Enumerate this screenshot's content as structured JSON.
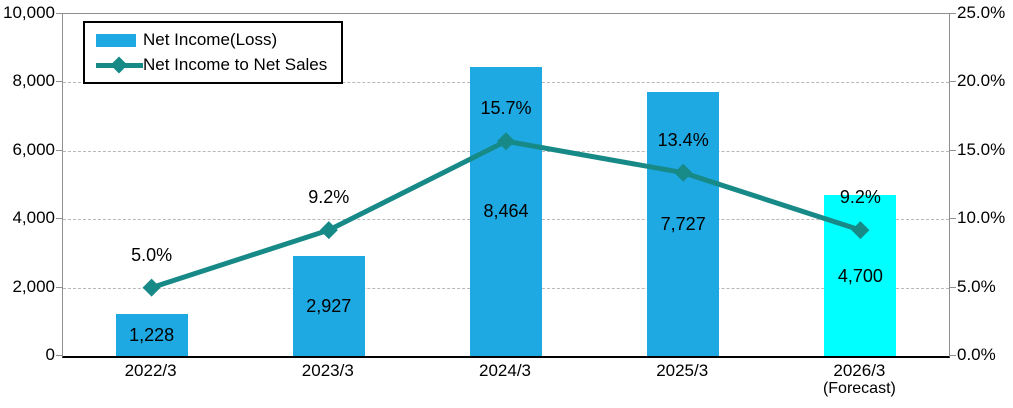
{
  "legend": {
    "items": [
      {
        "label": "Net Income(Loss)",
        "swatch": "bar-swatch",
        "color": "#1EA9E2"
      },
      {
        "label": "Net Income to Net Sales",
        "swatch": "line-diamond-swatch",
        "color": "#178A87"
      }
    ]
  },
  "chart_data": {
    "type": "combo-bar-line",
    "categories": [
      "2022/3",
      "2023/3",
      "2024/3",
      "2025/3",
      "2026/3"
    ],
    "category_sublabels": [
      "",
      "",
      "",
      "",
      "(Forecast)"
    ],
    "series": [
      {
        "name": "Net Income(Loss)",
        "type": "bar",
        "axis": "left",
        "values": [
          1228,
          2927,
          8464,
          7727,
          4700
        ],
        "labels": [
          "1,228",
          "2,927",
          "8,464",
          "7,727",
          "4,700"
        ],
        "bar_colors": [
          "#1EA9E2",
          "#1EA9E2",
          "#1EA9E2",
          "#1EA9E2",
          "#00FFFF"
        ]
      },
      {
        "name": "Net Income to Net Sales",
        "type": "line",
        "axis": "right",
        "values": [
          5.0,
          9.2,
          15.7,
          13.4,
          9.2
        ],
        "labels": [
          "5.0%",
          "9.2%",
          "15.7%",
          "13.4%",
          "9.2%"
        ],
        "color": "#178A87",
        "marker": "diamond"
      }
    ],
    "left_axis": {
      "min": 0,
      "max": 10000,
      "tick_values": [
        0,
        2000,
        4000,
        6000,
        8000,
        10000
      ],
      "tick_labels": [
        "0",
        "2,000",
        "4,000",
        "6,000",
        "8,000",
        "10,000"
      ]
    },
    "right_axis": {
      "min": 0,
      "max": 25,
      "tick_values": [
        0,
        5,
        10,
        15,
        20,
        25
      ],
      "tick_labels": [
        "0.0%",
        "5.0%",
        "10.0%",
        "15.0%",
        "20.0%",
        "25.0%"
      ]
    },
    "grid": true,
    "legend_position": "top-left",
    "colors": {
      "bar": "#1EA9E2",
      "bar_forecast": "#00FFFF",
      "line": "#178A87",
      "grid": "#b8b8b8",
      "border": "#8f8f8f"
    }
  }
}
